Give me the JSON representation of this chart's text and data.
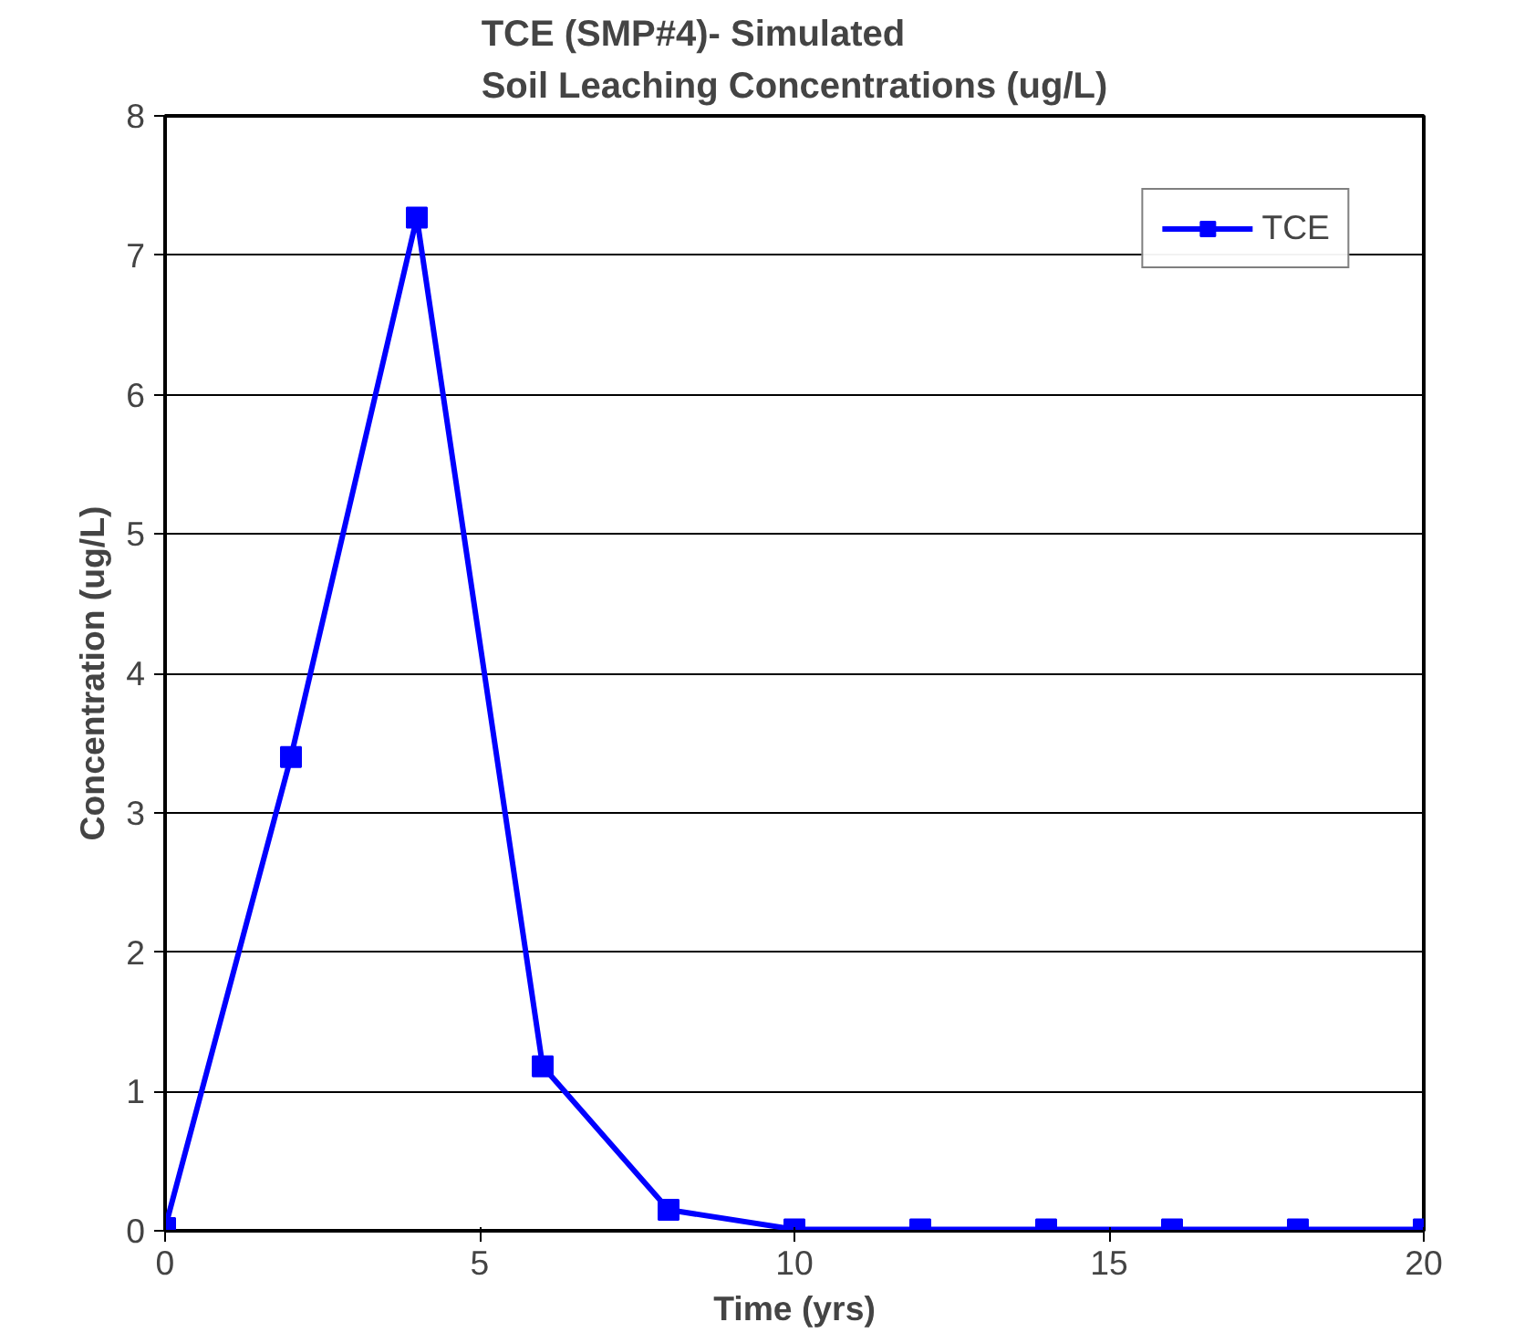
{
  "chart_data": {
    "type": "line",
    "title": "TCE (SMP#4)- Simulated\nSoil Leaching Concentrations (ug/L)",
    "xlabel": "Time (yrs)",
    "ylabel": "Concentration (ug/L)",
    "x": [
      0,
      2,
      4,
      6,
      8,
      10,
      12,
      14,
      16,
      18,
      20
    ],
    "series": [
      {
        "name": "TCE",
        "color": "#0000ff",
        "values": [
          0.02,
          3.4,
          7.27,
          1.18,
          0.15,
          0.01,
          0.01,
          0.01,
          0.01,
          0.01,
          0.01
        ]
      }
    ],
    "xlim": [
      0,
      20
    ],
    "xticks": [
      0,
      5,
      10,
      15,
      20
    ],
    "ylim": [
      0,
      8
    ],
    "yticks": [
      0,
      1,
      2,
      3,
      4,
      5,
      6,
      7,
      8
    ],
    "grid": "y",
    "legend": "top right",
    "marker": "square",
    "line_style": "solid"
  }
}
